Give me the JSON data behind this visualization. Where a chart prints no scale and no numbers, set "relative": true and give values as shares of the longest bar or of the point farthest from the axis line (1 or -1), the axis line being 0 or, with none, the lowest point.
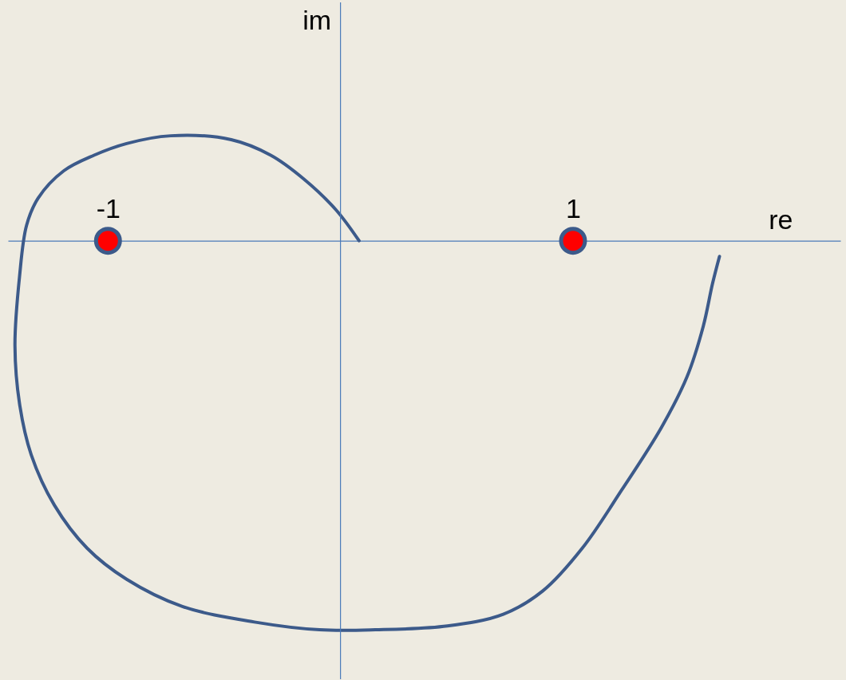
{
  "chart_data": {
    "type": "line",
    "xlabel": "re",
    "ylabel": "im",
    "relative": true,
    "xlim": [
      -1.43,
      2.15
    ],
    "xticks": [
      -1,
      1
    ],
    "line_style": "solid",
    "ref_lines": [
      {
        "axis": "x",
        "value": 0,
        "color": "#4a7ab8"
      }
    ],
    "series": [
      {
        "color": "#3c5a8a",
        "marker": "none",
        "x": [
          0.08,
          -0.02,
          -0.16,
          -0.3,
          -0.47,
          -0.73,
          -0.92,
          -1.06,
          -1.19,
          -1.3,
          -1.35,
          -1.38,
          -1.4,
          -1.38,
          -1.33,
          -1.23,
          -1.09,
          -0.92,
          -0.68,
          -0.37,
          -0.09,
          0.15,
          0.46,
          0.7,
          0.87,
          1.04,
          1.21,
          1.38,
          1.49,
          1.56,
          1.6,
          1.63
        ],
        "values": [
          0,
          0.08,
          0.16,
          0.22,
          0.26,
          0.27,
          0.25,
          0.22,
          0.18,
          0.11,
          0.04,
          -0.09,
          -0.27,
          -0.42,
          -0.55,
          -0.68,
          -0.79,
          -0.87,
          -0.94,
          -0.98,
          -1,
          -1,
          -0.99,
          -0.96,
          -0.9,
          -0.79,
          -0.64,
          -0.48,
          -0.35,
          -0.22,
          -0.11,
          -0.04
        ]
      },
      {
        "type": "scatter",
        "color": "#ff0000",
        "marker": "circle",
        "x": [
          -1,
          1
        ],
        "values": [
          0,
          0
        ]
      }
    ]
  }
}
